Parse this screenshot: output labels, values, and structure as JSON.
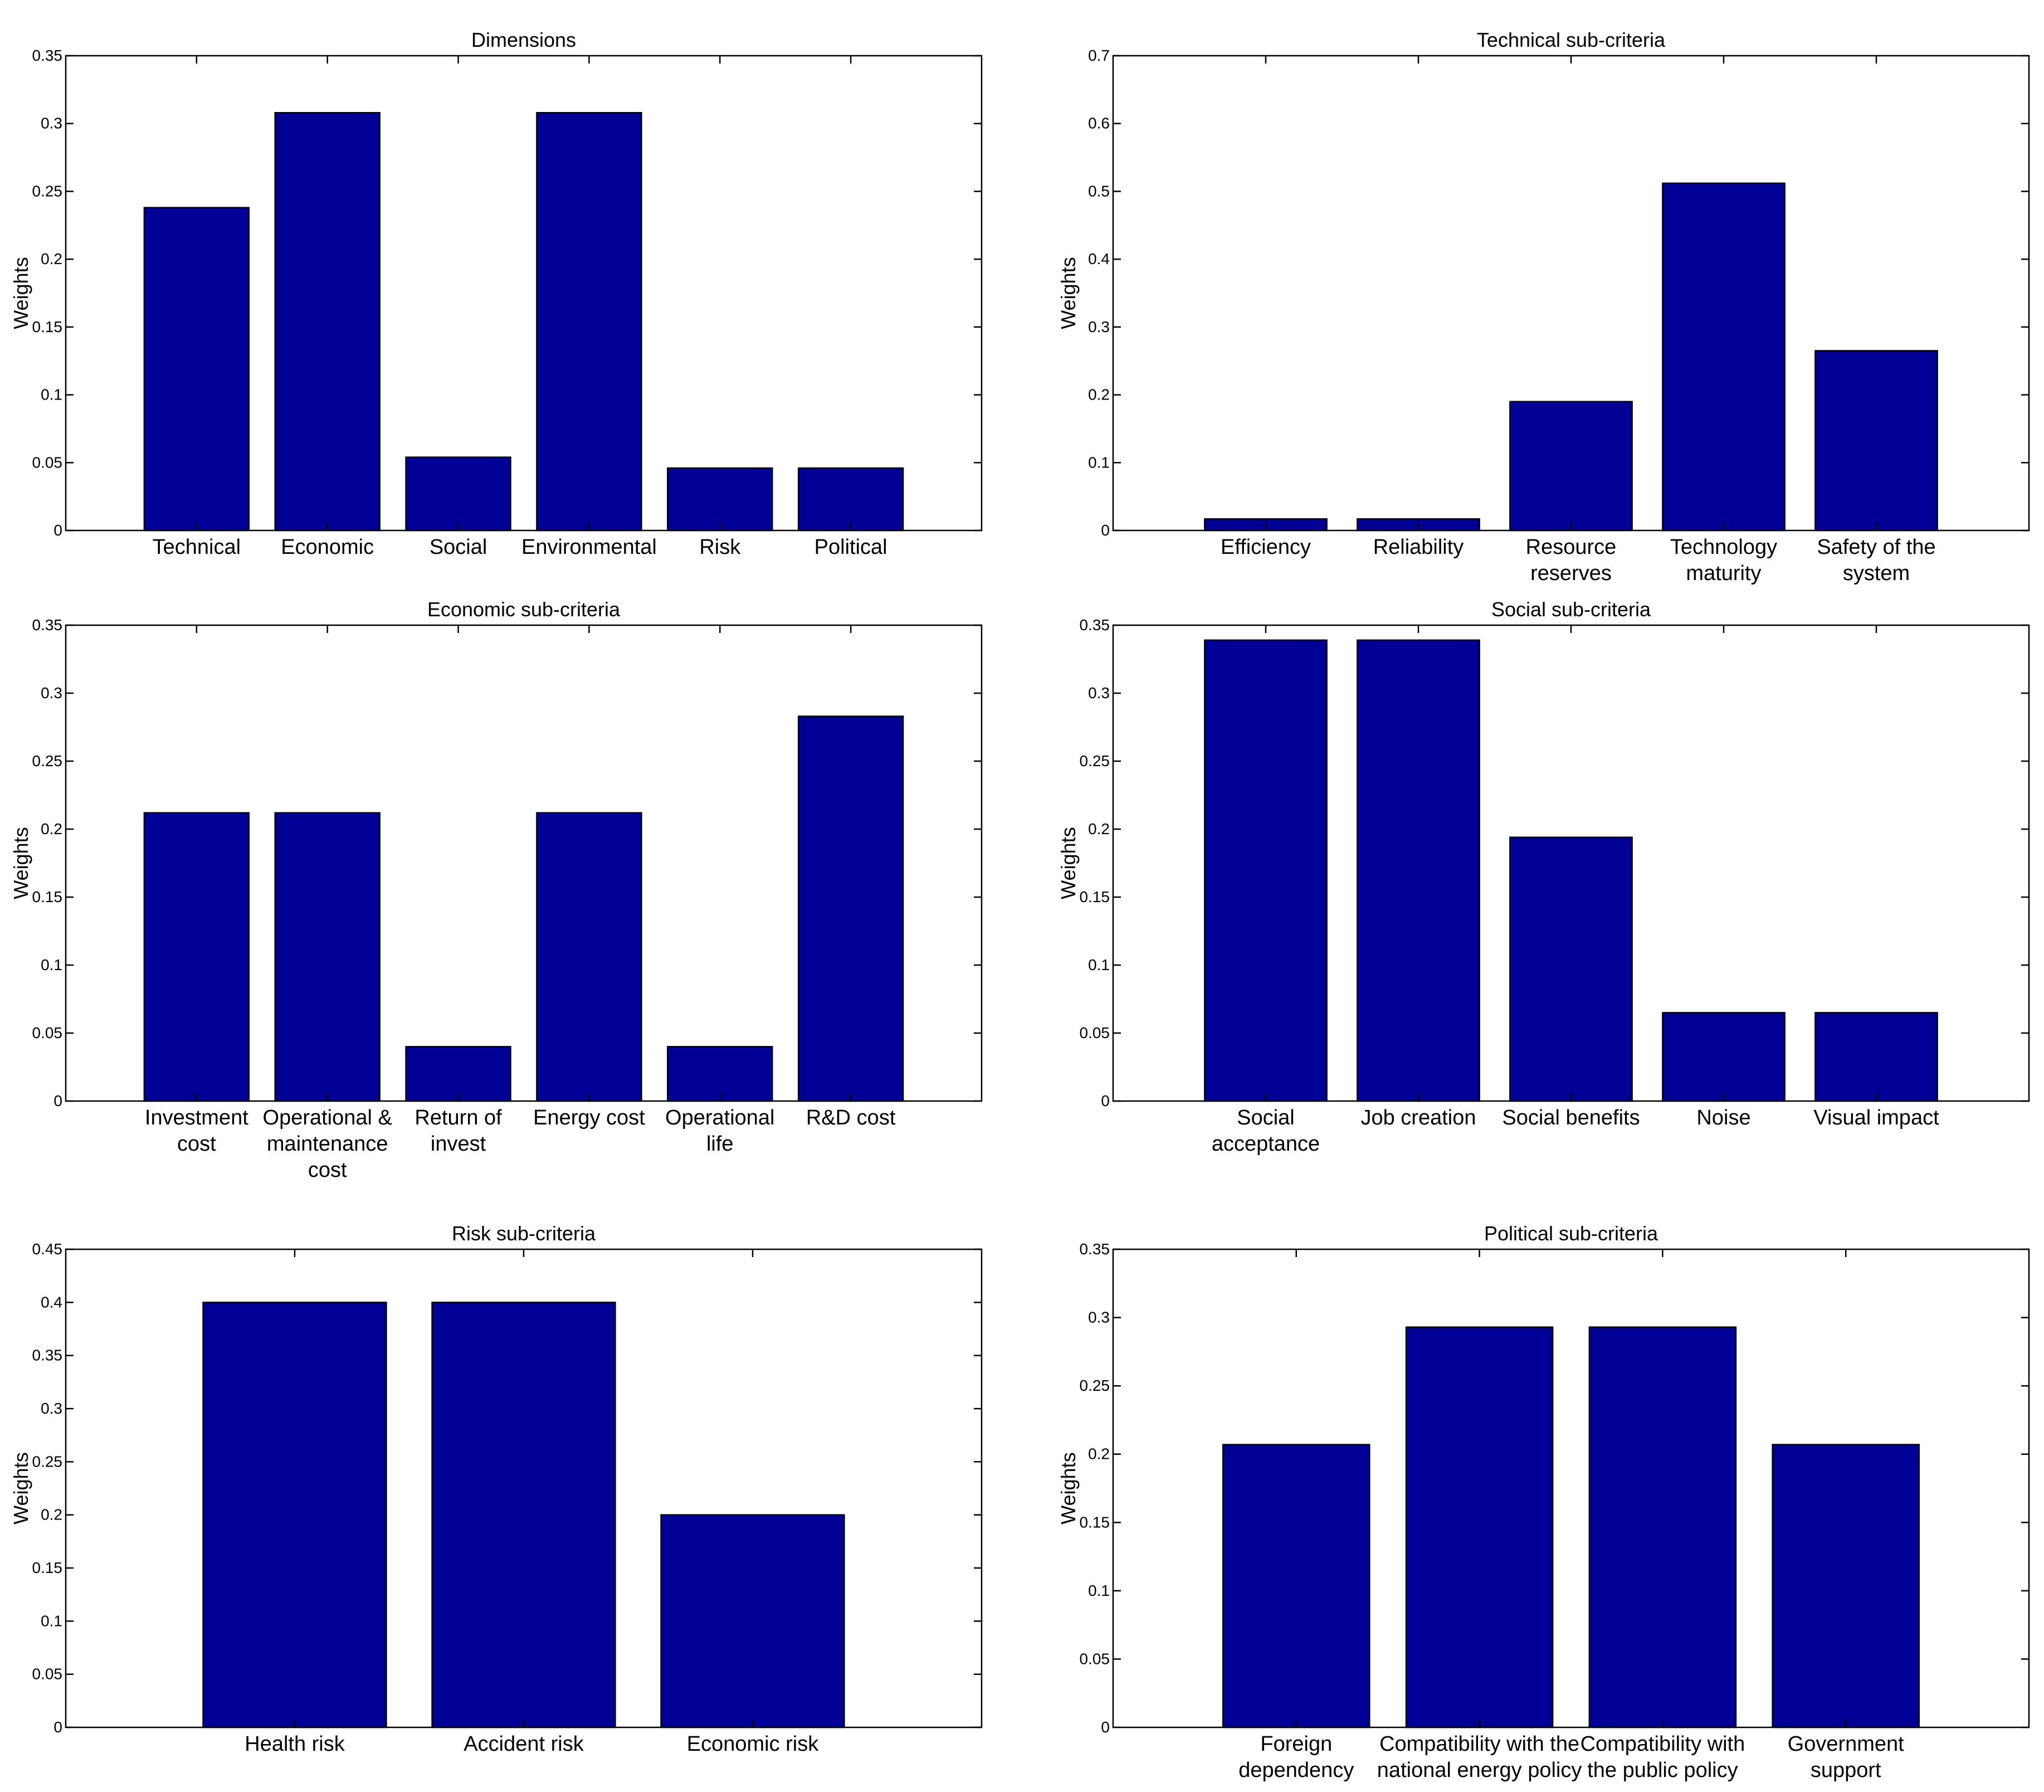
{
  "chart_data": [
    {
      "id": "dimensions",
      "type": "bar",
      "title": "Dimensions",
      "ylabel": "Weights",
      "xlabel": "",
      "ylim": [
        0,
        0.35
      ],
      "yticks": [
        "0",
        "0.05",
        "0.1",
        "0.15",
        "0.2",
        "0.25",
        "0.3",
        "0.35"
      ],
      "categories": [
        [
          "Technical"
        ],
        [
          "Economic"
        ],
        [
          "Social"
        ],
        [
          "Environmental"
        ],
        [
          "Risk"
        ],
        [
          "Political"
        ]
      ],
      "values": [
        0.238,
        0.308,
        0.054,
        0.308,
        0.046,
        0.046
      ],
      "bar_color": "#000096"
    },
    {
      "id": "technical",
      "type": "bar",
      "title": "Technical sub-criteria",
      "ylabel": "Weights",
      "xlabel": "",
      "ylim": [
        0,
        0.7
      ],
      "yticks": [
        "0",
        "0.1",
        "0.2",
        "0.3",
        "0.4",
        "0.5",
        "0.6",
        "0.7"
      ],
      "categories": [
        [
          "Efficiency"
        ],
        [
          "Reliability"
        ],
        [
          "Resource",
          "reserves"
        ],
        [
          "Technology",
          "maturity"
        ],
        [
          "Safety of the",
          "system"
        ]
      ],
      "values": [
        0.017,
        0.017,
        0.19,
        0.512,
        0.265
      ],
      "bar_color": "#000096"
    },
    {
      "id": "economic",
      "type": "bar",
      "title": "Economic sub-criteria",
      "ylabel": "Weights",
      "xlabel": "",
      "ylim": [
        0,
        0.35
      ],
      "yticks": [
        "0",
        "0.05",
        "0.1",
        "0.15",
        "0.2",
        "0.25",
        "0.3",
        "0.35"
      ],
      "categories": [
        [
          "Investment",
          "cost"
        ],
        [
          "Operational &",
          "maintenance",
          "cost"
        ],
        [
          "Return of",
          "invest"
        ],
        [
          "Energy cost"
        ],
        [
          "Operational",
          "life"
        ],
        [
          "R&D cost"
        ]
      ],
      "values": [
        0.212,
        0.212,
        0.04,
        0.212,
        0.04,
        0.283
      ],
      "bar_color": "#000096"
    },
    {
      "id": "social",
      "type": "bar",
      "title": "Social sub-criteria",
      "ylabel": "Weights",
      "xlabel": "",
      "ylim": [
        0,
        0.35
      ],
      "yticks": [
        "0",
        "0.05",
        "0.1",
        "0.15",
        "0.2",
        "0.25",
        "0.3",
        "0.35"
      ],
      "categories": [
        [
          "Social",
          "acceptance"
        ],
        [
          "Job creation"
        ],
        [
          "Social benefits"
        ],
        [
          "Noise"
        ],
        [
          "Visual impact"
        ]
      ],
      "values": [
        0.339,
        0.339,
        0.194,
        0.065,
        0.065
      ],
      "bar_color": "#000096"
    },
    {
      "id": "risk",
      "type": "bar",
      "title": "Risk sub-criteria",
      "ylabel": "Weights",
      "xlabel": "",
      "ylim": [
        0,
        0.45
      ],
      "yticks": [
        "0",
        "0.05",
        "0.1",
        "0.15",
        "0.2",
        "0.25",
        "0.3",
        "0.35",
        "0.4",
        "0.45"
      ],
      "categories": [
        [
          "Health risk"
        ],
        [
          "Accident risk"
        ],
        [
          "Economic risk"
        ]
      ],
      "values": [
        0.4,
        0.4,
        0.2
      ],
      "bar_color": "#000096"
    },
    {
      "id": "political",
      "type": "bar",
      "title": "Political sub-criteria",
      "ylabel": "Weights",
      "xlabel": "",
      "ylim": [
        0,
        0.35
      ],
      "yticks": [
        "0",
        "0.05",
        "0.1",
        "0.15",
        "0.2",
        "0.25",
        "0.3",
        "0.35"
      ],
      "categories": [
        [
          "Foreign",
          "dependency"
        ],
        [
          "Compatibility with the",
          "national energy policy"
        ],
        [
          "Compatibility with",
          "the public policy"
        ],
        [
          "Government",
          "support"
        ]
      ],
      "values": [
        0.207,
        0.293,
        0.293,
        0.207
      ],
      "bar_color": "#000096"
    }
  ]
}
